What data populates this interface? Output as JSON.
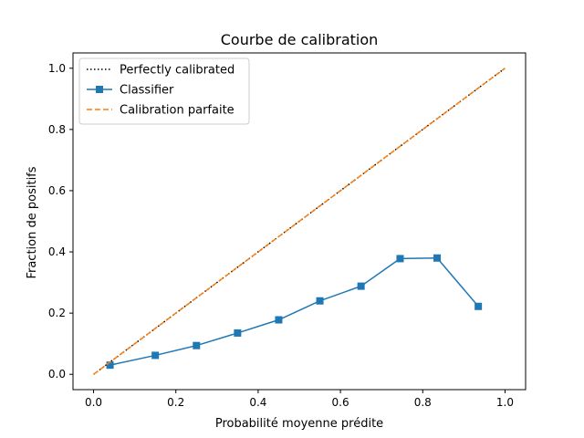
{
  "chart_data": {
    "type": "line",
    "title": "Courbe de calibration",
    "xlabel": "Probabilité moyenne prédite",
    "ylabel": "Fraction de positifs",
    "xlim": [
      -0.05,
      1.05
    ],
    "ylim": [
      -0.05,
      1.05
    ],
    "xticks": [
      0.0,
      0.2,
      0.4,
      0.6,
      0.8,
      1.0
    ],
    "yticks": [
      0.0,
      0.2,
      0.4,
      0.6,
      0.8,
      1.0
    ],
    "xtick_labels": [
      "0.0",
      "0.2",
      "0.4",
      "0.6",
      "0.8",
      "1.0"
    ],
    "ytick_labels": [
      "0.0",
      "0.2",
      "0.4",
      "0.6",
      "0.8",
      "1.0"
    ],
    "grid": false,
    "legend_position": "upper-left",
    "series": [
      {
        "name": "Perfectly calibrated",
        "style": "dotted",
        "color": "#000000",
        "x": [
          0,
          1
        ],
        "y": [
          0,
          1
        ]
      },
      {
        "name": "Classifier",
        "style": "solid",
        "marker": "square",
        "color": "#1f77b4",
        "x": [
          0.04,
          0.15,
          0.25,
          0.35,
          0.45,
          0.55,
          0.65,
          0.745,
          0.835,
          0.935
        ],
        "y": [
          0.03,
          0.062,
          0.094,
          0.135,
          0.178,
          0.24,
          0.288,
          0.378,
          0.38,
          0.222
        ]
      },
      {
        "name": "Calibration parfaite",
        "style": "dashed",
        "color": "#ff7f0e",
        "x": [
          0,
          1
        ],
        "y": [
          0,
          1
        ]
      }
    ]
  }
}
